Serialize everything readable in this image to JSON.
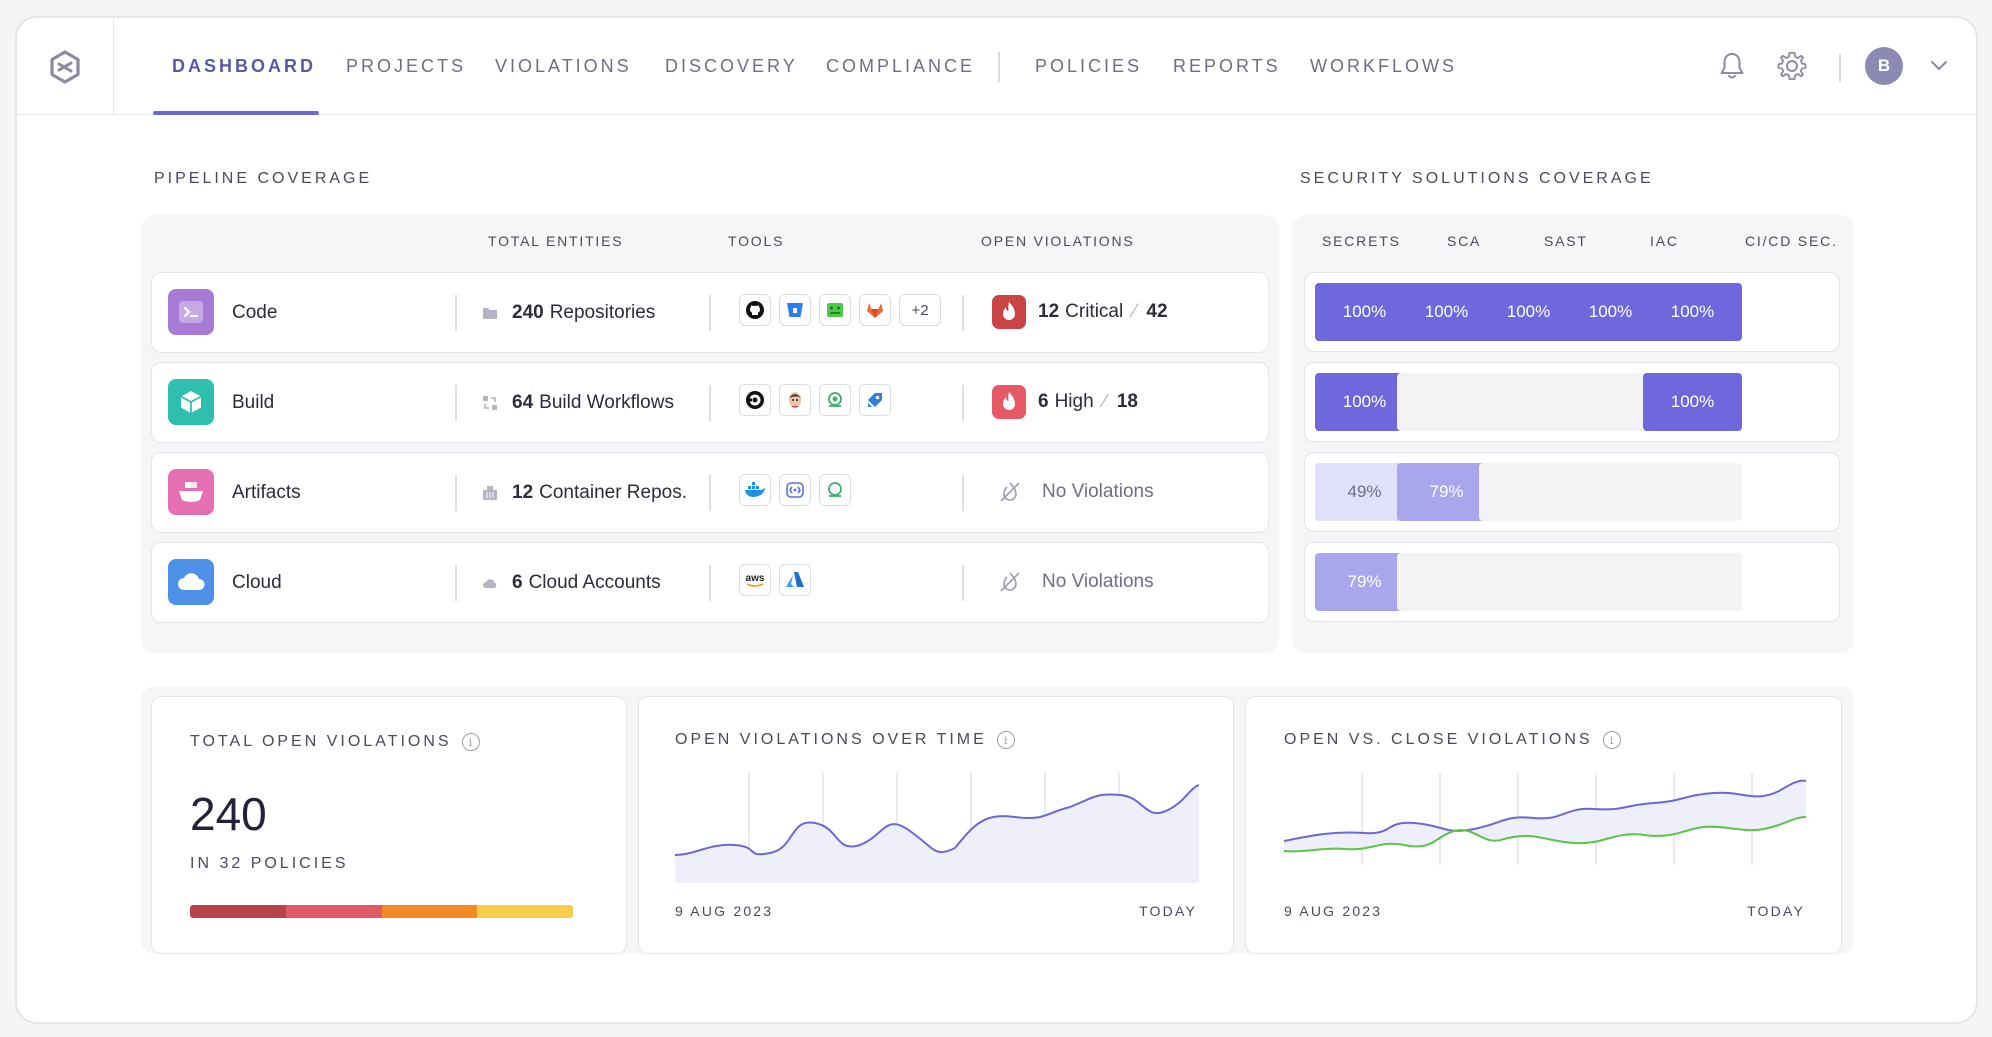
{
  "nav": {
    "items": [
      "DASHBOARD",
      "PROJECTS",
      "VIOLATIONS",
      "DISCOVERY",
      "COMPLIANCE",
      "POLICIES",
      "REPORTS",
      "WORKFLOWS"
    ],
    "active": "DASHBOARD",
    "avatar_initial": "B"
  },
  "pipeline": {
    "title": "PIPELINE COVERAGE",
    "columns": [
      "TOTAL ENTITIES",
      "TOOLS",
      "OPEN VIOLATIONS"
    ],
    "rows": [
      {
        "label": "Code",
        "icon": "terminal-icon",
        "color": "#a77ad6",
        "entity_count": "240",
        "entity_label": "Repositories",
        "tools": [
          "github-icon",
          "bitbucket-icon",
          "grid-tool-icon",
          "gitlab-icon"
        ],
        "more": "+2",
        "severity": "Critical",
        "severity_count": "12",
        "total": "42",
        "fire_color": "#c94444"
      },
      {
        "label": "Build",
        "icon": "box-icon",
        "color": "#2ebfae",
        "entity_count": "64",
        "entity_label": "Build Workflows",
        "tools": [
          "circleci-icon",
          "jenkins-icon",
          "octopus-icon",
          "azure-pipelines-icon"
        ],
        "more": "",
        "severity": "High",
        "severity_count": "6",
        "total": "18",
        "fire_color": "#e55a66"
      },
      {
        "label": "Artifacts",
        "icon": "cargo-ship-icon",
        "color": "#e46fb2",
        "entity_count": "12",
        "entity_label": "Container Repos.",
        "tools": [
          "docker-icon",
          "registry-icon",
          "nexus-icon"
        ],
        "more": "",
        "no_violations": "No Violations"
      },
      {
        "label": "Cloud",
        "icon": "cloud-icon",
        "color": "#4d90e8",
        "entity_count": "6",
        "entity_label": "Cloud Accounts",
        "tools": [
          "aws-icon",
          "azure-icon"
        ],
        "more": "",
        "no_violations": "No Violations"
      }
    ]
  },
  "security": {
    "title": "SECURITY SOLUTIONS COVERAGE",
    "columns": [
      "SECRETS",
      "SCA",
      "SAST",
      "IAC",
      "CI/CD SEC."
    ],
    "rows": [
      [
        "100%",
        "100%",
        "100%",
        "100%",
        "100%"
      ],
      [
        "100%",
        "",
        "",
        "",
        "100%"
      ],
      [
        "49%",
        "79%",
        "",
        "",
        ""
      ],
      [
        "79%",
        "",
        "",
        "",
        ""
      ]
    ],
    "colors": {
      "full": "#6e68dc",
      "high": "#a9a6ee",
      "low": "#e1e0fa"
    }
  },
  "total_violations": {
    "title": "TOTAL OPEN VIOLATIONS",
    "value": "240",
    "subtitle": "IN 32 POLICIES",
    "bar": [
      {
        "color": "#b8424c",
        "share": 0.25
      },
      {
        "color": "#e35a66",
        "share": 0.25
      },
      {
        "color": "#f28a26",
        "share": 0.25
      },
      {
        "color": "#f8cd4a",
        "share": 0.25
      }
    ]
  },
  "over_time": {
    "title": "OPEN VIOLATIONS OVER TIME",
    "x_start": "9 AUG 2023",
    "x_end": "TODAY"
  },
  "open_close": {
    "title": "OPEN VS. CLOSE VIOLATIONS",
    "x_start": "9 AUG 2023",
    "x_end": "TODAY"
  }
}
